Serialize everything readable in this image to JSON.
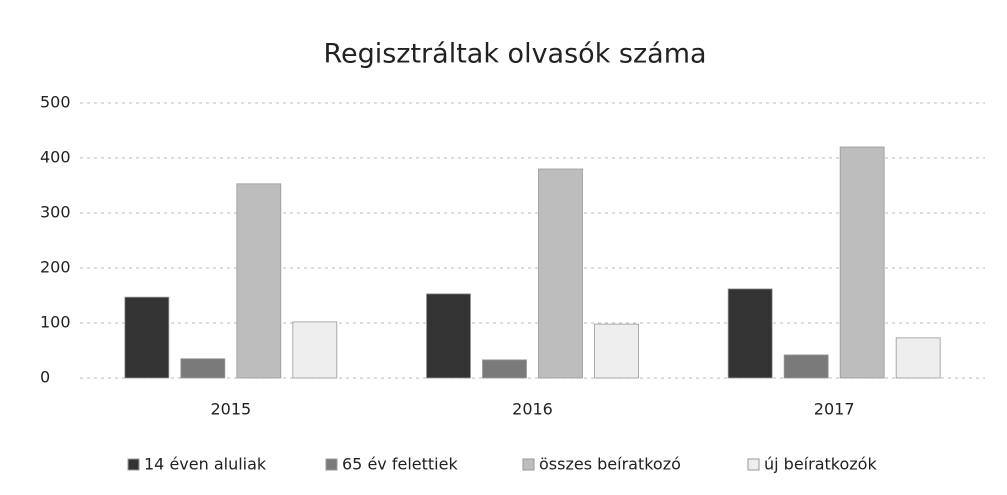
{
  "chart_data": {
    "type": "bar",
    "title": "Regisztráltak olvasók száma",
    "categories": [
      "2015",
      "2016",
      "2017"
    ],
    "series": [
      {
        "name": "14 éven aluliak",
        "color": "#333333",
        "values": [
          147,
          153,
          162
        ]
      },
      {
        "name": "65 év felettiek",
        "color": "#7a7a7a",
        "values": [
          35,
          33,
          42
        ]
      },
      {
        "name": "összes beíratkozó",
        "color": "#bdbdbd",
        "values": [
          353,
          380,
          420
        ]
      },
      {
        "name": "új beíratkozók",
        "color": "#eeeeee",
        "values": [
          102,
          98,
          73
        ]
      }
    ],
    "ylim": [
      0,
      500
    ],
    "yticks": [
      0,
      100,
      200,
      300,
      400,
      500
    ],
    "grid": true,
    "legend": "bottom"
  }
}
